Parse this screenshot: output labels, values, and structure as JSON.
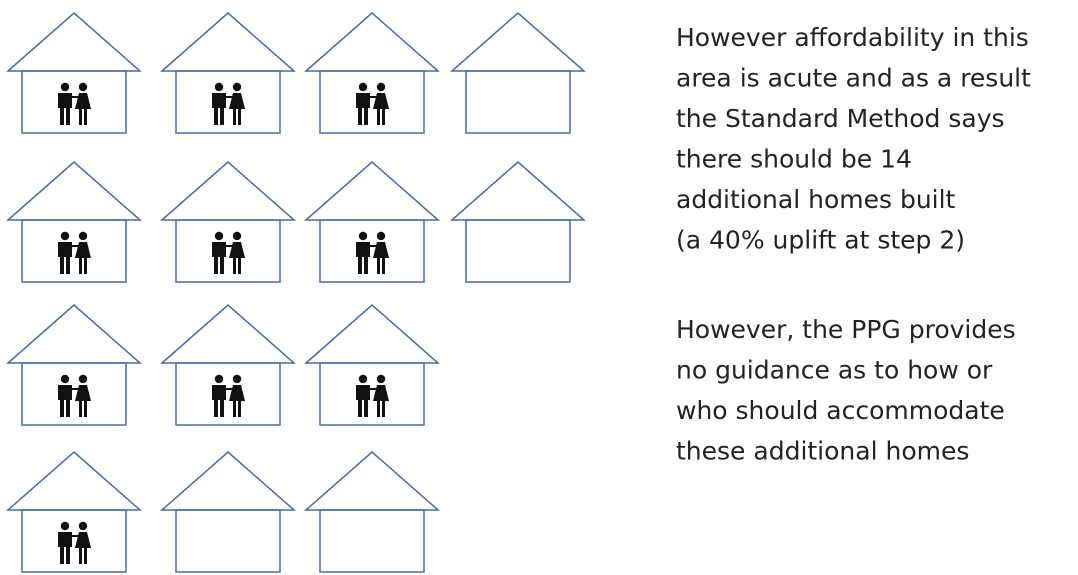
{
  "paragraphs": [
    {
      "lines": [
        "However affordability in this",
        "area is acute and as a result",
        "the Standard Method says",
        "there should be 14",
        "additional homes built",
        "(a 40% uplift at step 2)"
      ]
    },
    {
      "lines": [
        "However, the PPG provides",
        "no guidance as to how or",
        "who should accommodate",
        "these additional homes"
      ]
    }
  ]
}
